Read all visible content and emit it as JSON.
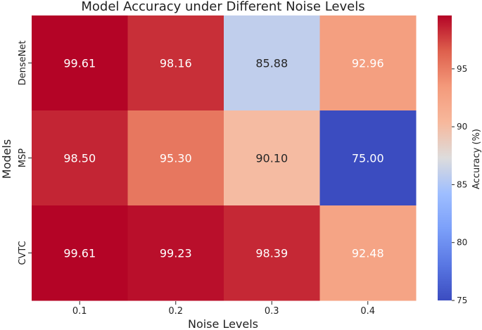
{
  "chart_data": {
    "type": "heatmap",
    "title": "Model Accuracy under Different Noise Levels",
    "xlabel": "Noise Levels",
    "ylabel": "Models",
    "x_categories": [
      "0.1",
      "0.2",
      "0.3",
      "0.4"
    ],
    "y_categories": [
      "DenseNet",
      "MSP",
      "CVTC"
    ],
    "values": [
      [
        99.61,
        98.16,
        85.88,
        92.96
      ],
      [
        98.5,
        95.3,
        90.1,
        75.0
      ],
      [
        99.61,
        99.23,
        98.39,
        92.48
      ]
    ],
    "value_labels": [
      [
        "99.61",
        "98.16",
        "85.88",
        "92.96"
      ],
      [
        "98.50",
        "95.30",
        "90.10",
        "75.00"
      ],
      [
        "99.61",
        "99.23",
        "98.39",
        "92.48"
      ]
    ],
    "colormap": "coolwarm",
    "colorbar": {
      "label": "Accuracy (%)",
      "range": [
        75,
        99.61
      ],
      "ticks": [
        75,
        80,
        85,
        90,
        95
      ]
    },
    "grid": false
  }
}
